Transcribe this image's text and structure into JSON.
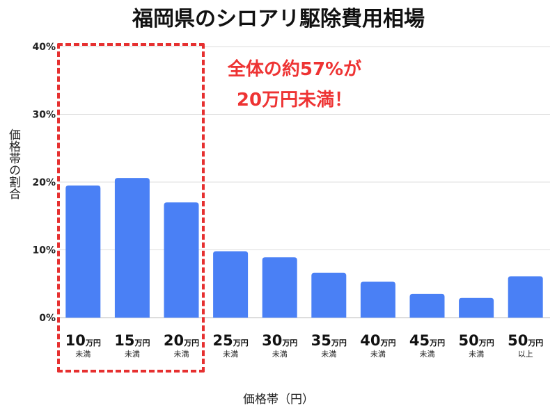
{
  "chart_data": {
    "type": "bar",
    "title": "福岡県のシロアリ駆除費用相場",
    "ylabel": "価格帯の割合",
    "xlabel": "価格帯（円）",
    "ylim": [
      0,
      40
    ],
    "yticks": [
      "0%",
      "10%",
      "20%",
      "30%",
      "40%"
    ],
    "grid": true,
    "categories": [
      {
        "amount": "10",
        "unit": "万円",
        "sub": "未満"
      },
      {
        "amount": "15",
        "unit": "万円",
        "sub": "未満"
      },
      {
        "amount": "20",
        "unit": "万円",
        "sub": "未満"
      },
      {
        "amount": "25",
        "unit": "万円",
        "sub": "未満"
      },
      {
        "amount": "30",
        "unit": "万円",
        "sub": "未満"
      },
      {
        "amount": "35",
        "unit": "万円",
        "sub": "未満"
      },
      {
        "amount": "40",
        "unit": "万円",
        "sub": "未満"
      },
      {
        "amount": "45",
        "unit": "万円",
        "sub": "未満"
      },
      {
        "amount": "50",
        "unit": "万円",
        "sub": "未満"
      },
      {
        "amount": "50",
        "unit": "万円",
        "sub": "以上"
      }
    ],
    "values": [
      19.5,
      20.6,
      17.0,
      9.8,
      8.9,
      6.6,
      5.3,
      3.5,
      2.9,
      6.1
    ],
    "bar_color": "#4a80f5",
    "highlight_color": "#e63030",
    "annotation": {
      "line1": "全体の約57%が",
      "line2": "20万円未満！"
    }
  }
}
